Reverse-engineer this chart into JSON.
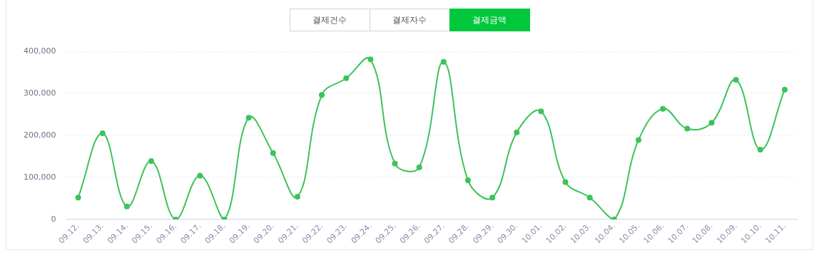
{
  "chart_data": {
    "type": "line",
    "title": "결제금액",
    "annotations": [
      "결제건수",
      "결제자수"
    ],
    "categories": [
      "09.12.",
      "09.13.",
      "09.14.",
      "09.15.",
      "09.16.",
      "09.17.",
      "09.18.",
      "09.19.",
      "09.20.",
      "09.21.",
      "09.22.",
      "09.23.",
      "09.24.",
      "09.25.",
      "09.26.",
      "09.27.",
      "09.28.",
      "09.29.",
      "09.30.",
      "10.01.",
      "10.02.",
      "10.03.",
      "10.04.",
      "10.05.",
      "10.06.",
      "10.07.",
      "10.08.",
      "10.09.",
      "10.10.",
      "10.11."
    ],
    "series": [
      {
        "color": "#3cc259",
        "values": [
          52000,
          205000,
          31000,
          139000,
          0,
          104000,
          0,
          242000,
          158000,
          54000,
          296000,
          336000,
          381000,
          133000,
          124000,
          375000,
          93000,
          52000,
          207000,
          257000,
          89000,
          52000,
          0,
          189000,
          263000,
          216000,
          230000,
          332000,
          166000,
          309000
        ]
      }
    ],
    "ylim": [
      0,
      400000
    ],
    "yticks": [
      {
        "value": 0,
        "label": "0"
      },
      {
        "value": 100000,
        "label": "100,000"
      },
      {
        "value": 200000,
        "label": "200,000"
      },
      {
        "value": 300000,
        "label": "300,000"
      },
      {
        "value": 400000,
        "label": "400,000"
      }
    ],
    "grid": "y",
    "legend": false,
    "marker": "circle",
    "line_style": "solid"
  }
}
